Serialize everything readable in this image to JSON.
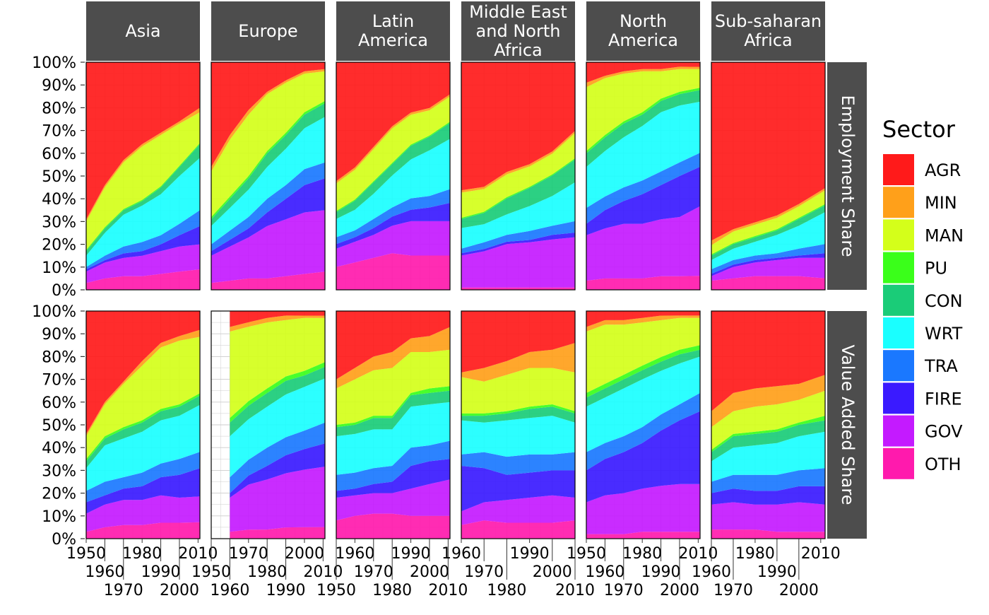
{
  "chart_data": {
    "type": "area",
    "stacked": true,
    "facet_columns": [
      "Asia",
      "Europe",
      "Latin America",
      "Middle East and North Africa",
      "North America",
      "Sub-saharan Africa"
    ],
    "facet_rows": [
      "Employment Share",
      "Value Added Share"
    ],
    "legend": {
      "title": "Sector",
      "position": "right"
    },
    "sectors": [
      "AGR",
      "MIN",
      "MAN",
      "PU",
      "CON",
      "WRT",
      "TRA",
      "FIRE",
      "GOV",
      "OTH"
    ],
    "colors": {
      "AGR": "#ff1a1a",
      "MIN": "#ffa01a",
      "MAN": "#d4ff1a",
      "PU": "#3aff1a",
      "CON": "#1acc78",
      "WRT": "#1affff",
      "TRA": "#1a78ff",
      "FIRE": "#3a1aff",
      "GOV": "#c41aff",
      "OTH": "#ff1aad"
    },
    "ylim": [
      0,
      100
    ],
    "y_ticks": [
      "0%",
      "10%",
      "20%",
      "30%",
      "40%",
      "50%",
      "60%",
      "70%",
      "80%",
      "90%",
      "100%"
    ],
    "years": [
      1950,
      1960,
      1970,
      1980,
      1990,
      2000,
      2010
    ],
    "x_range": {
      "Asia": [
        1950,
        2011
      ],
      "Europe": [
        1950,
        2011
      ],
      "Latin America": [
        1950,
        2011
      ],
      "Middle East and North Africa": [
        1960,
        2010
      ],
      "North America": [
        1950,
        2011
      ],
      "Sub-saharan Africa": [
        1960,
        2012
      ]
    },
    "x_ticks": {
      "Asia": [
        "1950",
        "1960",
        "1970",
        "1980",
        "1990",
        "2000",
        "2010"
      ],
      "Europe": [
        "1950",
        "1960",
        "1970",
        "1980",
        "1990",
        "2000",
        "2010"
      ],
      "Latin America": [
        "1950",
        "1960",
        "1970",
        "1980",
        "1990",
        "2000",
        "2010"
      ],
      "Middle East and North Africa": [
        "1960",
        "1970",
        "1980",
        "1990",
        "2000",
        "2010"
      ],
      "North America": [
        "1950",
        "1960",
        "1970",
        "1980",
        "1990",
        "2000",
        "2010"
      ],
      "Sub-saharan Africa": [
        "1960",
        "1970",
        "1980",
        "1990",
        "2000",
        "2010"
      ]
    },
    "panels": {
      "Employment Share": {
        "Asia": {
          "OTH": [
            3,
            5,
            6,
            6,
            7,
            8,
            9
          ],
          "GOV": [
            5,
            7,
            8,
            9,
            10,
            11,
            11
          ],
          "FIRE": [
            1,
            1,
            2,
            2,
            3,
            5,
            8
          ],
          "TRA": [
            1,
            2,
            3,
            4,
            4,
            5,
            7
          ],
          "WRT": [
            5,
            10,
            14,
            16,
            18,
            21,
            23
          ],
          "CON": [
            2,
            2,
            2,
            2,
            3,
            4,
            6
          ],
          "PU": [
            0.5,
            0.5,
            0.5,
            0.5,
            0.5,
            0.5,
            0.5
          ],
          "MAN": [
            12.5,
            17.5,
            20.5,
            23.5,
            22.5,
            18.5,
            13.5
          ],
          "MIN": [
            1,
            1,
            1,
            1,
            1,
            1,
            2
          ],
          "AGR": [
            69,
            54,
            43,
            36,
            31,
            26,
            20
          ]
        },
        "Europe": {
          "OTH": [
            3,
            4,
            5,
            5,
            6,
            7,
            8
          ],
          "GOV": [
            12,
            15,
            18,
            23,
            25,
            27,
            27
          ],
          "FIRE": [
            2,
            3,
            4,
            6,
            9,
            12,
            14
          ],
          "TRA": [
            3,
            4,
            5,
            6,
            6,
            7,
            7
          ],
          "WRT": [
            8,
            10,
            12,
            14,
            16,
            18,
            20
          ],
          "CON": [
            3,
            4,
            5,
            6,
            6,
            6,
            6
          ],
          "PU": [
            1,
            1,
            1,
            1,
            1,
            1,
            1
          ],
          "MAN": [
            20,
            25,
            27,
            25,
            22,
            17,
            13
          ],
          "MIN": [
            2,
            2,
            2,
            1,
            1,
            1,
            1
          ],
          "AGR": [
            46,
            32,
            21,
            13,
            8,
            4,
            3
          ]
        },
        "Latin America": {
          "OTH": [
            10,
            12,
            14,
            16,
            15,
            15,
            15
          ],
          "GOV": [
            8,
            9,
            10,
            12,
            15,
            15,
            15
          ],
          "FIRE": [
            2,
            2,
            3,
            4,
            5,
            6,
            8
          ],
          "TRA": [
            3,
            3,
            4,
            4,
            5,
            5,
            6
          ],
          "WRT": [
            8,
            9,
            11,
            14,
            17,
            20,
            22
          ],
          "CON": [
            3,
            4,
            5,
            5,
            6,
            6,
            7
          ],
          "PU": [
            0.5,
            0.5,
            0.5,
            0.5,
            0.5,
            0.5,
            0.5
          ],
          "MAN": [
            12,
            13,
            14,
            15,
            13,
            11,
            11
          ],
          "MIN": [
            1,
            1,
            1,
            1,
            1,
            1,
            1
          ],
          "AGR": [
            52,
            46,
            37,
            28,
            22,
            20,
            14
          ]
        },
        "Middle East and North Africa": {
          "OTH": [
            null,
            1,
            1,
            1,
            1,
            1,
            1
          ],
          "GOV": [
            null,
            14,
            16,
            19,
            20,
            21,
            22
          ],
          "FIRE": [
            null,
            1,
            1,
            1,
            1,
            2,
            2
          ],
          "TRA": [
            null,
            2,
            3,
            3,
            4,
            4,
            5
          ],
          "WRT": [
            null,
            9,
            8,
            9,
            11,
            13,
            17
          ],
          "CON": [
            null,
            4,
            5,
            7,
            8,
            9,
            10
          ],
          "PU": [
            null,
            0.5,
            0.5,
            0.5,
            0.5,
            0.5,
            0.5
          ],
          "MAN": [
            null,
            11,
            10,
            10,
            9,
            9,
            11
          ],
          "MIN": [
            null,
            1,
            1,
            1,
            1,
            1,
            1
          ],
          "AGR": [
            null,
            56,
            55,
            48,
            45,
            39,
            30
          ]
        },
        "North America": {
          "OTH": [
            4,
            5,
            5,
            5,
            6,
            6,
            6
          ],
          "GOV": [
            20,
            22,
            24,
            24,
            25,
            26,
            30
          ],
          "FIRE": [
            5,
            8,
            10,
            13,
            15,
            18,
            17
          ],
          "TRA": [
            7,
            6,
            6,
            6,
            6,
            6,
            6
          ],
          "WRT": [
            18,
            20,
            22,
            24,
            26,
            25,
            22
          ],
          "CON": [
            6,
            6,
            6,
            5,
            5,
            5,
            5
          ],
          "PU": [
            1,
            1,
            1,
            1,
            1,
            1,
            1
          ],
          "MAN": [
            28,
            25,
            21,
            18,
            12,
            10,
            8
          ],
          "MIN": [
            2,
            1,
            1,
            1,
            1,
            1,
            1
          ],
          "AGR": [
            9,
            6,
            4,
            3,
            3,
            2,
            2
          ]
        },
        "Sub-saharan Africa": {
          "OTH": [
            null,
            4,
            5,
            6,
            6,
            6,
            5
          ],
          "GOV": [
            null,
            2,
            5,
            6,
            7,
            8,
            9
          ],
          "FIRE": [
            null,
            1,
            1,
            1,
            1,
            1,
            2
          ],
          "TRA": [
            null,
            2,
            2,
            2,
            2,
            3,
            4
          ],
          "WRT": [
            null,
            4,
            5,
            6,
            8,
            10,
            14
          ],
          "CON": [
            null,
            2,
            2,
            2,
            2,
            3,
            3
          ],
          "PU": [
            null,
            0.5,
            0.5,
            0.5,
            0.5,
            0.5,
            0.5
          ],
          "MAN": [
            null,
            4,
            5,
            5,
            5,
            5,
            6
          ],
          "MIN": [
            null,
            2,
            1,
            1,
            1,
            1,
            1
          ],
          "AGR": [
            null,
            78,
            73,
            70,
            67,
            62,
            55
          ]
        }
      },
      "Value Added Share": {
        "Asia": {
          "OTH": [
            3,
            5,
            6,
            6,
            7,
            7,
            7
          ],
          "GOV": [
            8,
            10,
            11,
            11,
            12,
            11,
            11
          ],
          "FIRE": [
            5,
            4,
            5,
            6,
            8,
            10,
            12
          ],
          "TRA": [
            5,
            6,
            5,
            6,
            6,
            7,
            7
          ],
          "WRT": [
            10,
            16,
            17,
            18,
            19,
            19,
            20
          ],
          "CON": [
            3,
            3,
            4,
            4,
            4,
            4,
            4
          ],
          "PU": [
            1,
            1,
            1,
            1,
            1,
            1,
            1
          ],
          "MAN": [
            10,
            14,
            19,
            24,
            27,
            28,
            24
          ],
          "MIN": [
            1,
            1,
            1,
            2,
            2,
            2,
            3
          ],
          "AGR": [
            54,
            40,
            31,
            22,
            14,
            11,
            8
          ]
        },
        "Europe": {
          "OTH": [
            null,
            3,
            4,
            4,
            5,
            5,
            5
          ],
          "GOV": [
            null,
            15,
            20,
            22,
            24,
            25,
            26
          ],
          "FIRE": [
            null,
            2,
            4,
            6,
            8,
            9,
            10
          ],
          "TRA": [
            null,
            7,
            7,
            8,
            8,
            8,
            9
          ],
          "WRT": [
            null,
            18,
            18,
            18,
            19,
            19,
            19
          ],
          "CON": [
            null,
            6,
            6,
            6,
            6,
            5,
            5
          ],
          "PU": [
            null,
            2,
            2,
            2,
            2,
            2,
            2
          ],
          "MAN": [
            null,
            38,
            33,
            29,
            25,
            23,
            19
          ],
          "MIN": [
            null,
            2,
            2,
            2,
            2,
            1,
            1
          ],
          "AGR": [
            null,
            7,
            5,
            3,
            2,
            2,
            2
          ]
        },
        "Latin America": {
          "OTH": [
            8,
            10,
            11,
            11,
            10,
            10,
            10
          ],
          "GOV": [
            10,
            9,
            9,
            9,
            12,
            14,
            16
          ],
          "FIRE": [
            3,
            3,
            4,
            5,
            10,
            10,
            9
          ],
          "TRA": [
            7,
            7,
            7,
            7,
            8,
            7,
            8
          ],
          "WRT": [
            17,
            17,
            17,
            16,
            18,
            18,
            17
          ],
          "CON": [
            4,
            4,
            5,
            5,
            5,
            5,
            5
          ],
          "PU": [
            1,
            1,
            1,
            1,
            1,
            2,
            2
          ],
          "MAN": [
            16,
            19,
            20,
            21,
            18,
            16,
            16
          ],
          "MIN": [
            4,
            5,
            6,
            7,
            6,
            7,
            10
          ],
          "AGR": [
            30,
            25,
            20,
            18,
            12,
            11,
            7
          ]
        },
        "Middle East and North Africa": {
          "OTH": [
            null,
            6,
            8,
            7,
            7,
            7,
            8
          ],
          "GOV": [
            null,
            6,
            8,
            10,
            11,
            12,
            10
          ],
          "FIRE": [
            null,
            20,
            15,
            11,
            11,
            11,
            12
          ],
          "TRA": [
            null,
            5,
            7,
            8,
            8,
            7,
            8
          ],
          "WRT": [
            null,
            15,
            13,
            16,
            16,
            17,
            13
          ],
          "CON": [
            null,
            2,
            3,
            3,
            4,
            4,
            4
          ],
          "PU": [
            null,
            1,
            1,
            1,
            1,
            1,
            1
          ],
          "MAN": [
            null,
            16,
            14,
            16,
            17,
            16,
            17
          ],
          "MIN": [
            null,
            2,
            6,
            6,
            7,
            8,
            13
          ],
          "AGR": [
            null,
            27,
            25,
            22,
            18,
            17,
            14
          ]
        },
        "North America": {
          "OTH": [
            2,
            2,
            2,
            3,
            3,
            3,
            3
          ],
          "GOV": [
            14,
            17,
            18,
            19,
            20,
            21,
            21
          ],
          "FIRE": [
            14,
            16,
            18,
            20,
            24,
            28,
            32
          ],
          "TRA": [
            8,
            7,
            7,
            7,
            7,
            7,
            8
          ],
          "WRT": [
            20,
            20,
            21,
            21,
            19,
            18,
            16
          ],
          "CON": [
            4,
            4,
            4,
            4,
            4,
            4,
            3
          ],
          "PU": [
            2,
            2,
            2,
            2,
            2,
            2,
            2
          ],
          "MAN": [
            27,
            26,
            22,
            19,
            16,
            14,
            12
          ],
          "MIN": [
            2,
            2,
            2,
            2,
            2,
            1,
            1
          ],
          "AGR": [
            7,
            4,
            4,
            3,
            2,
            2,
            2
          ]
        },
        "Sub-saharan Africa": {
          "OTH": [
            null,
            4,
            4,
            4,
            3,
            3,
            3
          ],
          "GOV": [
            null,
            11,
            12,
            11,
            12,
            13,
            12
          ],
          "FIRE": [
            null,
            5,
            6,
            6,
            6,
            7,
            8
          ],
          "TRA": [
            null,
            5,
            6,
            7,
            7,
            7,
            8
          ],
          "WRT": [
            null,
            9,
            12,
            13,
            14,
            15,
            16
          ],
          "CON": [
            null,
            4,
            5,
            5,
            5,
            5,
            5
          ],
          "PU": [
            null,
            1,
            1,
            1,
            1,
            1,
            2
          ],
          "MAN": [
            null,
            10,
            10,
            11,
            11,
            10,
            11
          ],
          "MIN": [
            null,
            7,
            8,
            8,
            8,
            7,
            7
          ],
          "AGR": [
            null,
            44,
            36,
            34,
            33,
            32,
            28
          ]
        }
      }
    }
  }
}
